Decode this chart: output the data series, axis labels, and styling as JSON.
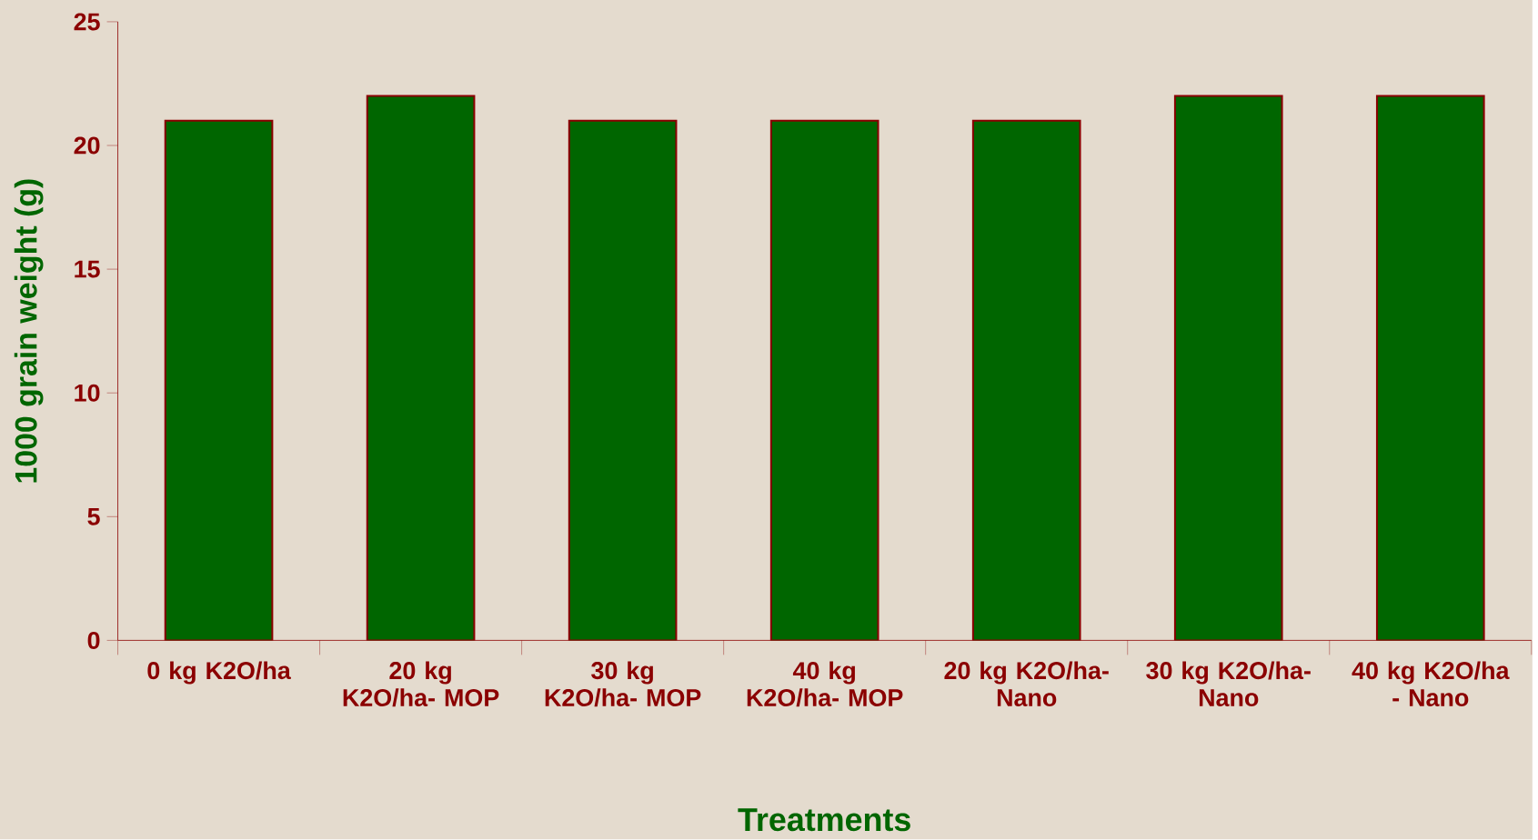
{
  "chart_data": {
    "type": "bar",
    "xlabel": "Treatments",
    "ylabel": "1000 grain weight (g)",
    "categories": [
      "0 kg K2O/ha",
      "20 kg K2O/ha- MOP",
      "30 kg K2O/ha- MOP",
      "40 kg K2O/ha- MOP",
      "20 kg K2O/ha- Nano",
      "30 kg K2O/ha- Nano",
      "40 kg K2O/ha - Nano"
    ],
    "values": [
      21,
      22,
      21,
      21,
      21,
      22,
      22
    ],
    "color": "#006600",
    "ylim": [
      0,
      25
    ],
    "yticks": [
      0,
      5,
      10,
      15,
      20,
      25
    ]
  }
}
